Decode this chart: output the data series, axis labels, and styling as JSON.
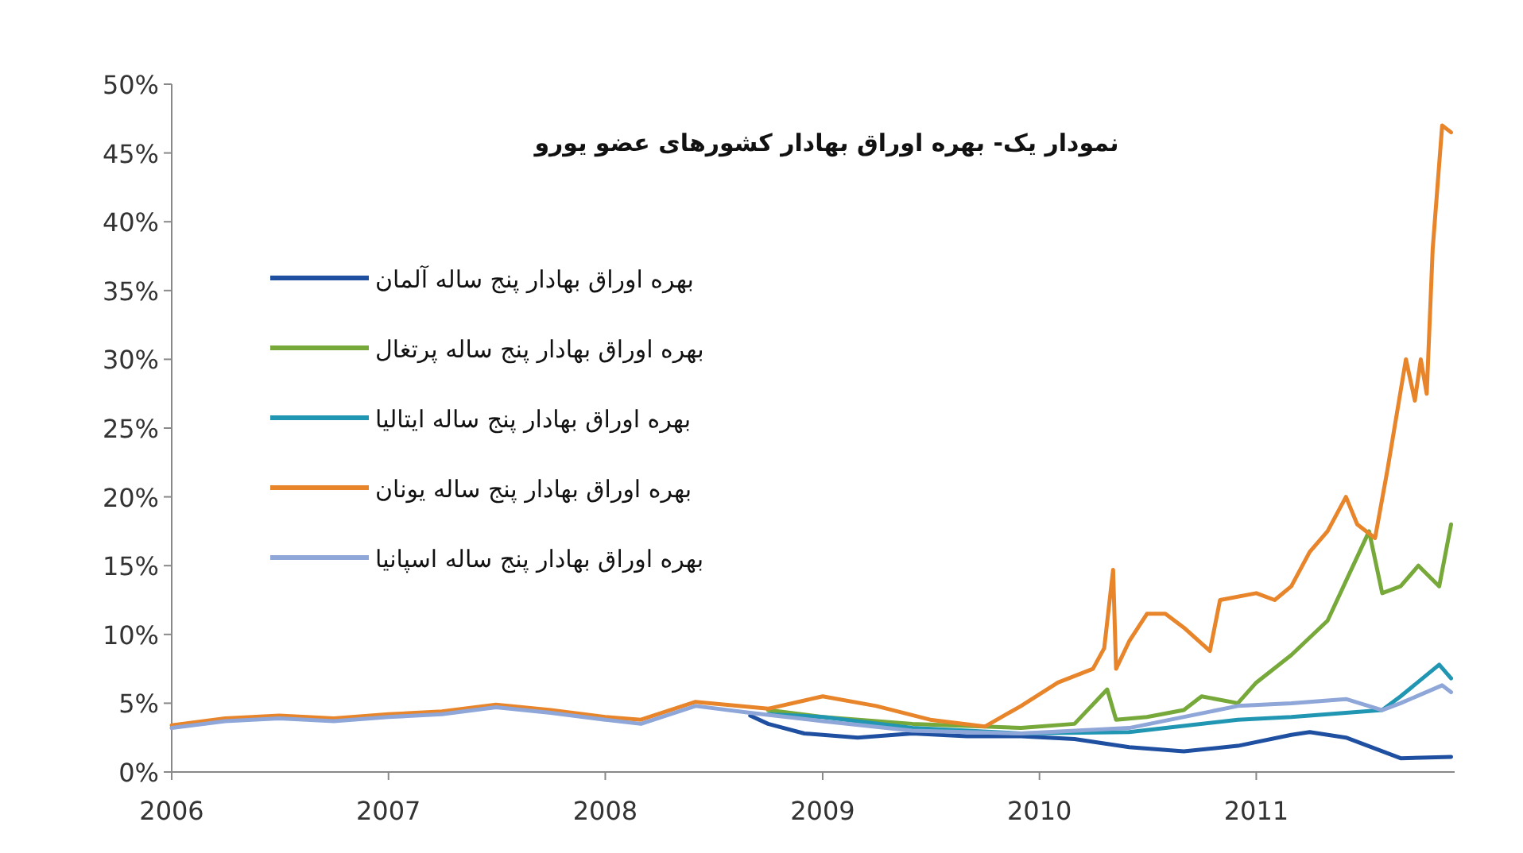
{
  "chart_data": {
    "type": "line",
    "title": "نمودار یک- بهره اوراق بهادار کشورهای عضو یورو",
    "xlim": [
      "2006-01",
      "2011-12"
    ],
    "xticks": [
      "2006",
      "2007",
      "2008",
      "2009",
      "2010",
      "2011"
    ],
    "ylim": [
      0,
      50
    ],
    "yticks": [
      {
        "value": 0,
        "label": "0%"
      },
      {
        "value": 5,
        "label": "5%"
      },
      {
        "value": 10,
        "label": "10%"
      },
      {
        "value": 15,
        "label": "15%"
      },
      {
        "value": 20,
        "label": "20%"
      },
      {
        "value": 25,
        "label": "25%"
      },
      {
        "value": 30,
        "label": "30%"
      },
      {
        "value": 35,
        "label": "35%"
      },
      {
        "value": 40,
        "label": "40%"
      },
      {
        "value": 45,
        "label": "45%"
      },
      {
        "value": 50,
        "label": "50%"
      }
    ],
    "grid": false,
    "legend": "top left",
    "line_style": "solid",
    "marker": "none",
    "series": [
      {
        "name": "بهره اوراق بهادار پنج ساله آلمان",
        "color": "#1f4fa0",
        "x": [
          "2008-09",
          "2008-10",
          "2008-12",
          "2009-03",
          "2009-06",
          "2009-09",
          "2009-12",
          "2010-03",
          "2010-06",
          "2010-09",
          "2010-12",
          "2011-03",
          "2011-04",
          "2011-06",
          "2011-09",
          "2011-11-25"
        ],
        "values": [
          4.1,
          3.5,
          2.8,
          2.5,
          2.8,
          2.6,
          2.6,
          2.4,
          1.8,
          1.5,
          1.9,
          2.7,
          2.9,
          2.5,
          1.0,
          1.1
        ]
      },
      {
        "name": "بهره اوراق بهادار پنج ساله پرتغال",
        "color": "#77a83a",
        "x": [
          "2008-10",
          "2009-01",
          "2009-06",
          "2009-12",
          "2010-03",
          "2010-04-25",
          "2010-05-10",
          "2010-07",
          "2010-09",
          "2010-10",
          "2010-12",
          "2011-01",
          "2011-03",
          "2011-05",
          "2011-07-10",
          "2011-08",
          "2011-09",
          "2011-10",
          "2011-11-05",
          "2011-11-25"
        ],
        "values": [
          4.5,
          4.0,
          3.5,
          3.2,
          3.5,
          6.0,
          3.8,
          4.0,
          4.5,
          5.5,
          5.0,
          6.5,
          8.5,
          11,
          17.5,
          13,
          13.5,
          15,
          13.5,
          18
        ]
      },
      {
        "name": "بهره اوراق بهادار پنج ساله ایتالیا",
        "color": "#2196b3",
        "x": [
          "2008-10",
          "2009-01",
          "2009-06",
          "2009-12",
          "2010-06",
          "2010-12",
          "2011-03",
          "2011-06",
          "2011-08",
          "2011-09",
          "2011-11-05",
          "2011-11-25"
        ],
        "values": [
          4.2,
          4.0,
          3.2,
          2.8,
          2.9,
          3.8,
          4.0,
          4.3,
          4.5,
          5.5,
          7.8,
          6.8
        ]
      },
      {
        "name": "بهره اوراق بهادار پنج ساله یونان",
        "color": "#e8852a",
        "x": [
          "2006-01",
          "2006-04",
          "2006-07",
          "2006-10",
          "2007-01",
          "2007-04",
          "2007-07",
          "2007-10",
          "2008-01",
          "2008-03",
          "2008-06",
          "2008-10",
          "2009-01",
          "2009-04",
          "2009-07",
          "2009-10",
          "2009-12",
          "2010-02",
          "2010-04",
          "2010-04-20",
          "2010-05-05",
          "2010-05-10",
          "2010-06",
          "2010-07",
          "2010-08",
          "2010-09",
          "2010-10-15",
          "2010-11",
          "2011-01",
          "2011-02",
          "2011-03",
          "2011-04",
          "2011-05",
          "2011-06",
          "2011-06-20",
          "2011-07-20",
          "2011-08-10",
          "2011-09-10",
          "2011-09-25",
          "2011-10-05",
          "2011-10-15",
          "2011-10-25",
          "2011-11-10",
          "2011-11-25"
        ],
        "values": [
          3.4,
          3.9,
          4.1,
          3.9,
          4.2,
          4.4,
          4.9,
          4.5,
          4.0,
          3.8,
          5.1,
          4.6,
          5.5,
          4.8,
          3.8,
          3.3,
          4.8,
          6.5,
          7.5,
          9,
          14.7,
          7.5,
          9.5,
          11.5,
          11.5,
          10.5,
          8.8,
          12.5,
          13,
          12.5,
          13.5,
          16,
          17.5,
          20,
          18,
          17,
          22,
          30,
          27,
          30,
          27.5,
          38,
          47,
          46.5
        ]
      },
      {
        "name": "بهره اوراق بهادار پنج ساله اسپانیا",
        "color": "#8fa6d8",
        "x": [
          "2006-01",
          "2006-04",
          "2006-07",
          "2006-10",
          "2007-01",
          "2007-04",
          "2007-07",
          "2007-10",
          "2008-01",
          "2008-03",
          "2008-06",
          "2008-09",
          "2009-01",
          "2009-06",
          "2009-12",
          "2010-06",
          "2010-12",
          "2011-03",
          "2011-06",
          "2011-08",
          "2011-09",
          "2011-11-10",
          "2011-11-25"
        ],
        "values": [
          3.2,
          3.7,
          3.9,
          3.7,
          4.0,
          4.2,
          4.7,
          4.3,
          3.8,
          3.5,
          4.8,
          4.3,
          3.7,
          3.0,
          2.8,
          3.2,
          4.8,
          5.0,
          5.3,
          4.5,
          5.0,
          6.3,
          5.8
        ]
      }
    ]
  }
}
